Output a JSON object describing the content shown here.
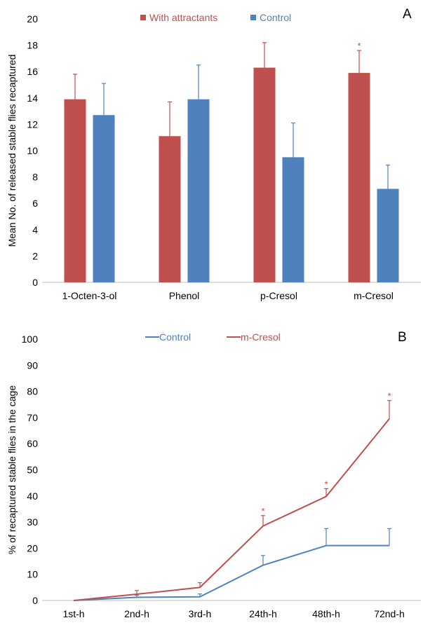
{
  "chart_data": [
    {
      "panel": "A",
      "type": "bar",
      "ylabel": "Mean No. of released stable flies recaptured",
      "xlabel": "",
      "ylim": [
        0,
        20
      ],
      "yticks": [
        0,
        2,
        4,
        6,
        8,
        10,
        12,
        14,
        16,
        18,
        20
      ],
      "categories": [
        "1-Octen-3-ol",
        "Phenol",
        "p-Cresol",
        "m-Cresol"
      ],
      "legend_position": "top",
      "series": [
        {
          "name": "With attractants",
          "color": "#c0504d",
          "values": [
            13.9,
            11.1,
            16.3,
            15.9
          ],
          "errors": [
            1.9,
            2.6,
            1.9,
            1.7
          ]
        },
        {
          "name": "Control",
          "color": "#4f81bd",
          "values": [
            12.7,
            13.9,
            9.5,
            7.1
          ],
          "errors": [
            2.4,
            2.6,
            2.6,
            1.8
          ]
        }
      ],
      "significance": [
        {
          "category": "m-Cresol",
          "series": "With attractants",
          "marker": "*"
        }
      ]
    },
    {
      "panel": "B",
      "type": "line",
      "ylabel": "% of recaptured stable flies in the cage",
      "xlabel": "",
      "ylim": [
        0,
        100
      ],
      "yticks": [
        0,
        10,
        20,
        30,
        40,
        50,
        60,
        70,
        80,
        90,
        100
      ],
      "categories": [
        "1st-h",
        "2nd-h",
        "3rd-h",
        "24th-h",
        "48th-h",
        "72nd-h"
      ],
      "legend_position": "top",
      "series": [
        {
          "name": "Control",
          "color": "#4f81bd",
          "values": [
            0,
            1.2,
            1.4,
            13.5,
            21,
            21
          ],
          "errors": [
            0,
            0.8,
            1.1,
            3.7,
            6.5,
            6.5
          ]
        },
        {
          "name": "m-Cresol",
          "color": "#c0504d",
          "values": [
            0,
            2.4,
            5,
            28.5,
            39.8,
            69.5
          ],
          "errors": [
            0,
            1.4,
            1.8,
            4,
            3,
            7
          ]
        }
      ],
      "significance": [
        {
          "category": "24th-h",
          "series": "m-Cresol",
          "marker": "*"
        },
        {
          "category": "48th-h",
          "series": "m-Cresol",
          "marker": "*"
        },
        {
          "category": "72nd-h",
          "series": "m-Cresol",
          "marker": "*"
        }
      ]
    }
  ]
}
